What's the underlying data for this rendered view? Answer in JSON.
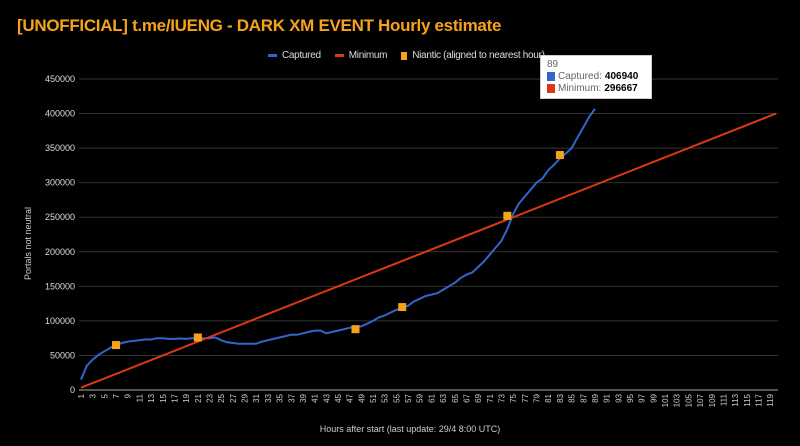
{
  "chart_data": {
    "type": "line",
    "title": "[UNOFFICIAL] t.me/IUENG - DARK XM EVENT Hourly estimate",
    "xlabel": "Hours after start (last update: 29/4  8:00 UTC)",
    "ylabel": "Portals not neutral",
    "xlim": [
      1,
      120
    ],
    "ylim": [
      0,
      450000
    ],
    "yticks": [
      0,
      50000,
      100000,
      150000,
      200000,
      250000,
      300000,
      350000,
      400000,
      450000
    ],
    "grid": true,
    "legend_position": "top",
    "series": [
      {
        "name": "Captured",
        "type": "line",
        "color": "#3366cc",
        "x": [
          1,
          2,
          3,
          4,
          5,
          6,
          7,
          8,
          9,
          10,
          11,
          12,
          13,
          14,
          15,
          16,
          17,
          18,
          19,
          20,
          21,
          22,
          23,
          24,
          25,
          26,
          27,
          28,
          29,
          30,
          31,
          32,
          33,
          34,
          35,
          36,
          37,
          38,
          39,
          40,
          41,
          42,
          43,
          44,
          45,
          46,
          47,
          48,
          49,
          50,
          51,
          52,
          53,
          54,
          55,
          56,
          57,
          58,
          59,
          60,
          61,
          62,
          63,
          64,
          65,
          66,
          67,
          68,
          69,
          70,
          71,
          72,
          73,
          74,
          75,
          76,
          77,
          78,
          79,
          80,
          81,
          82,
          83,
          84,
          85,
          86,
          87,
          88,
          89
        ],
        "values": [
          15000,
          35000,
          44000,
          51000,
          56000,
          61000,
          65000,
          68000,
          70000,
          71000,
          72000,
          73000,
          73000,
          75000,
          75000,
          74000,
          74000,
          74500,
          74000,
          75000,
          76000,
          75000,
          75000,
          76000,
          72000,
          69000,
          68000,
          67000,
          67000,
          67000,
          67000,
          70000,
          72000,
          74000,
          76000,
          78000,
          80000,
          80000,
          82000,
          84000,
          86000,
          86000,
          82000,
          84000,
          86000,
          88000,
          90000,
          92000,
          92000,
          96000,
          100000,
          105000,
          108000,
          112000,
          116000,
          118000,
          122000,
          128000,
          132000,
          136000,
          138000,
          140000,
          145000,
          150000,
          155000,
          162000,
          167000,
          170000,
          178000,
          186000,
          196000,
          206000,
          216000,
          233000,
          255000,
          270000,
          280000,
          290000,
          300000,
          306000,
          318000,
          326000,
          335000,
          342000,
          350000,
          365000,
          380000,
          395000,
          406940
        ]
      },
      {
        "name": "Minimum",
        "type": "line",
        "color": "#dc3912",
        "x": [
          1,
          89,
          120
        ],
        "values": [
          3333,
          296667,
          400000
        ]
      },
      {
        "name": "Niantic (aligned to nearest hour)",
        "type": "scatter",
        "color": "#f7a21b",
        "x": [
          7,
          21,
          48,
          56,
          74,
          83
        ],
        "values": [
          65000,
          76000,
          88000,
          120000,
          252000,
          340000
        ]
      }
    ],
    "tooltip": {
      "hour": "89",
      "captured_label": "Captured:",
      "captured_value": "406940",
      "minimum_label": "Minimum:",
      "minimum_value": "296667"
    }
  }
}
